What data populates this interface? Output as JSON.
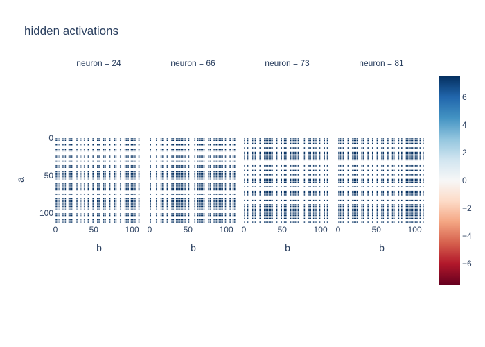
{
  "chart_data": {
    "type": "heatmap",
    "title": "hidden activations",
    "facet_prefix": "neuron = ",
    "xlabel": "b",
    "ylabel": "a",
    "x_range": [
      0,
      113
    ],
    "y_range": [
      0,
      113
    ],
    "x_ticks": [
      0,
      50,
      100
    ],
    "y_ticks": [
      0,
      50,
      100
    ],
    "colorscale": "RdBu",
    "color_range": [
      -7.5,
      7.5
    ],
    "colorbar_ticks": [
      6,
      4,
      2,
      0,
      -2,
      -4,
      -6
    ],
    "colorbar_tick_labels": [
      "6",
      "4",
      "2",
      "0",
      "−2",
      "−4",
      "−6"
    ],
    "colors": {
      "high": "#053061",
      "low": "#67001f",
      "zero": "#f7f7f7",
      "text": "#2a3f5f"
    },
    "facets": [
      {
        "neuron": 24,
        "label": "neuron = 24",
        "x_period": 113,
        "x_phase": 0,
        "y_phase": 0
      },
      {
        "neuron": 66,
        "label": "neuron = 66",
        "x_period": 113,
        "x_phase": 0,
        "y_phase": 0
      },
      {
        "neuron": 73,
        "label": "neuron = 73",
        "x_period": 113,
        "x_phase": 0,
        "y_phase": 0
      },
      {
        "neuron": 81,
        "label": "neuron = 81",
        "x_period": 113,
        "x_phase": 0,
        "y_phase": 0
      }
    ]
  }
}
